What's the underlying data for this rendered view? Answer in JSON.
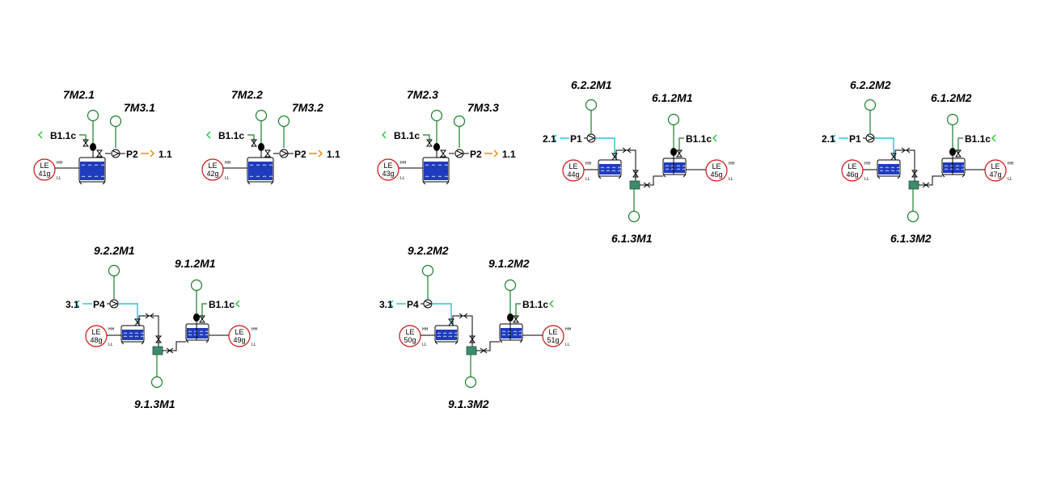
{
  "single_tank_units": [
    {
      "motor_top": "7M2.1",
      "motor_side": "7M3.1",
      "feed": "B1.1c",
      "pump": "P2",
      "outlet": "1.1",
      "le": "LE",
      "le_num": "41g"
    },
    {
      "motor_top": "7M2.2",
      "motor_side": "7M3.2",
      "feed": "B1.1c",
      "pump": "P2",
      "outlet": "1.1",
      "le": "LE",
      "le_num": "42g"
    },
    {
      "motor_top": "7M2.3",
      "motor_side": "7M3.3",
      "feed": "B1.1c",
      "pump": "P2",
      "outlet": "1.1",
      "le": "LE",
      "le_num": "43g"
    }
  ],
  "dual_tank_units": [
    {
      "motor_a": "6.2.2M1",
      "motor_b": "6.1.2M1",
      "motor_c": "6.1.3M1",
      "inlet": "2.1",
      "pump": "P1",
      "feed": "B1.1c",
      "le": "LE",
      "le_left": "44g",
      "le_right": "45g"
    },
    {
      "motor_a": "6.2.2M2",
      "motor_b": "6.1.2M2",
      "motor_c": "6.1.3M2",
      "inlet": "2.1",
      "pump": "P1",
      "feed": "B1.1c",
      "le": "LE",
      "le_left": "46g",
      "le_right": "47g"
    },
    {
      "motor_a": "9.2.2M1",
      "motor_b": "9.1.2M1",
      "motor_c": "9.1.3M1",
      "inlet": "3.1",
      "pump": "P4",
      "feed": "B1.1c",
      "le": "LE",
      "le_left": "48g",
      "le_right": "49g"
    },
    {
      "motor_a": "9.2.2M2",
      "motor_b": "9.1.2M2",
      "motor_c": "9.1.3M2",
      "inlet": "3.1",
      "pump": "P4",
      "feed": "B1.1c",
      "le": "LE",
      "le_left": "50g",
      "le_right": "51g"
    }
  ],
  "level_marks": {
    "high": "HH",
    "low": "LL"
  },
  "colors": {
    "motor": "#1a7f2a",
    "pipe_cyan": "#00b8d4",
    "level_sensor": "#d01010",
    "outlet": "#e08a00",
    "feed_arrow": "#22c33a",
    "liquid": "#1f3cbf"
  }
}
